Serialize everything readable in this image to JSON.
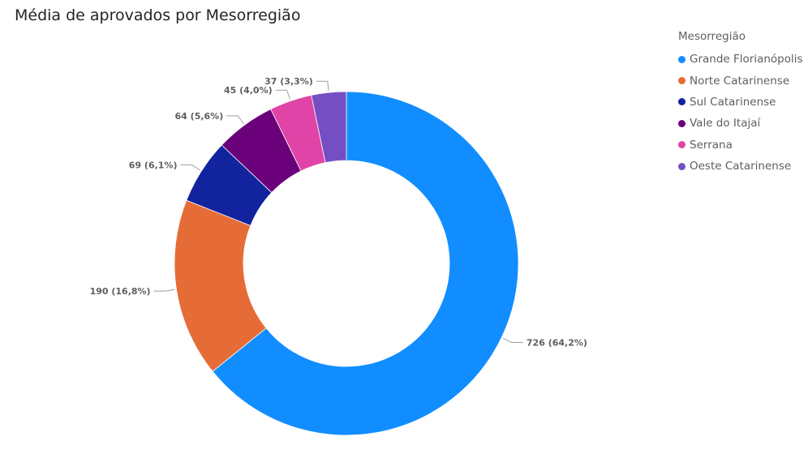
{
  "chart_data": {
    "type": "pie",
    "variant": "donut",
    "title": "Média de aprovados por Mesorregião",
    "legend_title": "Mesorregião",
    "legend_position": "top-right",
    "slices": [
      {
        "name": "Grande Florianópolis",
        "value": 726,
        "percent_label": "64,2%",
        "label": "726 (64,2%)",
        "color": "#118dff"
      },
      {
        "name": "Norte Catarinense",
        "value": 190,
        "percent_label": "16,8%",
        "label": "190 (16,8%)",
        "color": "#e66c37"
      },
      {
        "name": "Sul Catarinense",
        "value": 69,
        "percent_label": "6,1%",
        "label": "69 (6,1%)",
        "color": "#12239e"
      },
      {
        "name": "Vale do Itajaí",
        "value": 64,
        "percent_label": "5,6%",
        "label": "64 (5,6%)",
        "color": "#6b007b"
      },
      {
        "name": "Serrana",
        "value": 45,
        "percent_label": "4,0%",
        "label": "45 (4,0%)",
        "color": "#e044a7"
      },
      {
        "name": "Oeste Catarinense",
        "value": 37,
        "percent_label": "3,3%",
        "label": "37 (3,3%)",
        "color": "#744ec2"
      }
    ]
  }
}
